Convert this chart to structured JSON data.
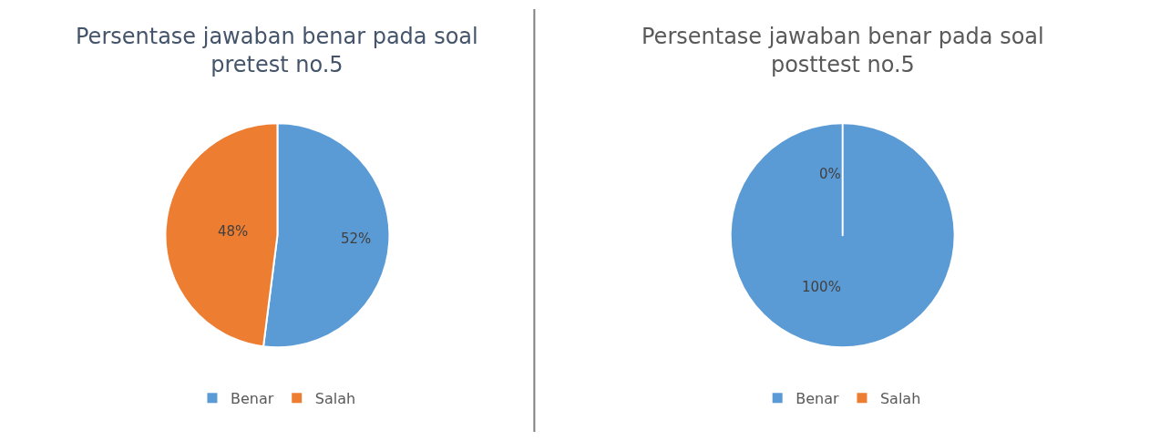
{
  "chart_data": [
    {
      "type": "pie",
      "title": "Persentase jawaban benar pada soal pretest no.5",
      "categories": [
        "Benar",
        "Salah"
      ],
      "values": [
        52,
        48
      ],
      "colors": [
        "#5b9bd5",
        "#ed7d31"
      ],
      "value_labels": [
        "52%",
        "48%"
      ],
      "legend": "bottom"
    },
    {
      "type": "pie",
      "title": "Persentase jawaban benar pada soal posttest no.5",
      "categories": [
        "Benar",
        "Salah"
      ],
      "values": [
        100,
        0
      ],
      "colors": [
        "#5b9bd5",
        "#ed7d31"
      ],
      "value_labels": [
        "100%",
        "0%"
      ],
      "legend": "bottom"
    }
  ]
}
